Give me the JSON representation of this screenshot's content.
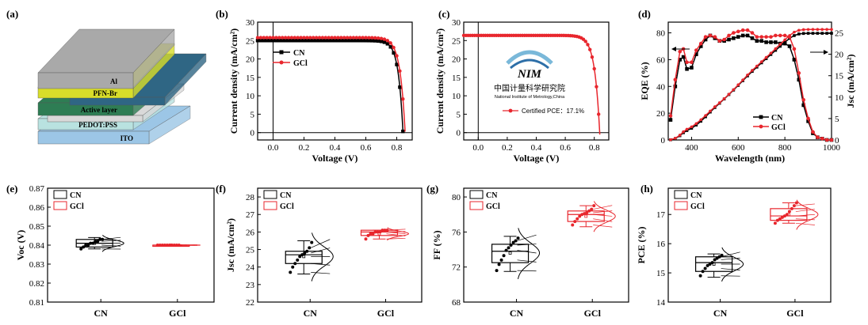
{
  "panel_labels": [
    "(a)",
    "(b)",
    "(c)",
    "(d)",
    "(e)",
    "(f)",
    "(g)",
    "(h)"
  ],
  "colors": {
    "CN": "#000000",
    "GCl": "#e8262d"
  },
  "device_stack": {
    "layers": [
      {
        "label": "Al",
        "color": "#a9a9a9"
      },
      {
        "label": "PFN-Br",
        "color": "#d8dd2a"
      },
      {
        "label": "",
        "color": "#2f6684"
      },
      {
        "label": "Active layer",
        "color": "#2e7d54"
      },
      {
        "label": "",
        "color": "#d9d9d9"
      },
      {
        "label": "PEDOT:PSS",
        "color": "#b9e2e0"
      },
      {
        "label": "ITO",
        "color": "#9cc6e6"
      }
    ]
  },
  "certification": {
    "logo_cn": "中国计量科学研究院",
    "logo_en": "National Institute of Metrology,China"
  },
  "chart_data": [
    {
      "panel": "(b)",
      "type": "line",
      "xlabel": "Voltage (V)",
      "ylabel": "Current density (mA/cm²)",
      "xlim": [
        -0.1,
        0.9
      ],
      "ylim": [
        -2,
        30
      ],
      "xticks": [
        "0.0",
        "0.2",
        "0.4",
        "0.6",
        "0.8"
      ],
      "yticks": [
        "0",
        "5",
        "10",
        "15",
        "20",
        "25",
        "30"
      ],
      "legend": "top-left",
      "series": [
        {
          "name": "CN",
          "color": "#000000",
          "jsc": 25.0,
          "voc": 0.841,
          "n": 2.8
        },
        {
          "name": "GCl",
          "color": "#e8262d",
          "jsc": 25.8,
          "voc": 0.855,
          "n": 2.6
        }
      ]
    },
    {
      "panel": "(c)",
      "type": "line",
      "xlabel": "Voltage (V)",
      "ylabel": "Current density (mA/cm²)",
      "xlim": [
        -0.1,
        0.9
      ],
      "ylim": [
        -2,
        30
      ],
      "xticks": [
        "0.0",
        "0.2",
        "0.4",
        "0.6",
        "0.8"
      ],
      "yticks": [
        "0",
        "5",
        "10",
        "15",
        "20",
        "25",
        "30"
      ],
      "legend": "center",
      "series": [
        {
          "name": "Certified PCE：17.1%",
          "color": "#e8262d",
          "jsc": 26.4,
          "voc": 0.838,
          "n": 2.4
        }
      ]
    },
    {
      "panel": "(d)",
      "type": "line",
      "xlabel": "Wavelength (nm)",
      "ylabel_left": "EQE (%)",
      "ylabel_right": "Jsc (mA/cm²)",
      "xlim": [
        300,
        1000
      ],
      "ylim_left": [
        0,
        88
      ],
      "ylim_right": [
        0,
        27.5
      ],
      "xticks": [
        "400",
        "600",
        "800",
        "1000"
      ],
      "yticks_left": [
        "0",
        "20",
        "40",
        "60",
        "80"
      ],
      "yticks_right": [
        "0",
        "5",
        "10",
        "15",
        "20",
        "25"
      ],
      "legend": "center-right",
      "x": [
        310,
        330,
        350,
        365,
        380,
        400,
        420,
        440,
        460,
        480,
        500,
        520,
        540,
        560,
        580,
        600,
        620,
        640,
        660,
        680,
        700,
        720,
        740,
        760,
        780,
        800,
        820,
        840,
        860,
        880,
        900,
        920,
        940,
        960,
        980,
        1000
      ],
      "series": [
        {
          "name": "CN",
          "color": "#000000",
          "eqe": [
            15,
            40,
            60,
            62,
            53,
            54,
            64,
            70,
            75,
            78,
            76,
            74,
            74,
            75,
            76,
            77,
            78,
            78,
            76,
            74,
            74,
            73,
            73,
            73,
            72,
            72,
            70,
            60,
            45,
            26,
            14,
            5,
            2,
            1,
            0,
            0
          ],
          "jsc_final": 24.9
        },
        {
          "name": "GCl",
          "color": "#e8262d",
          "eqe": [
            18,
            45,
            66,
            68,
            58,
            58,
            67,
            72,
            77,
            78,
            77,
            74,
            75,
            78,
            80,
            81,
            82,
            82,
            80,
            77,
            77,
            77,
            77,
            78,
            78,
            78,
            77,
            68,
            50,
            30,
            16,
            6,
            2,
            1,
            0,
            0
          ],
          "jsc_final": 25.8
        }
      ]
    },
    {
      "panel": "(e)",
      "type": "box",
      "ylabel": "Voc (V)",
      "ylim": [
        0.81,
        0.87
      ],
      "yticks": [
        "0.81",
        "0.82",
        "0.83",
        "0.84",
        "0.85",
        "0.86",
        "0.87"
      ],
      "categories": [
        "CN",
        "GCl"
      ],
      "legend": "top-left",
      "groups": [
        {
          "name": "CN",
          "q1": 0.839,
          "median": 0.841,
          "q3": 0.843,
          "whisker_low": 0.838,
          "whisker_high": 0.844,
          "mean": 0.841,
          "points": [
            0.838,
            0.839,
            0.84,
            0.84,
            0.841,
            0.841,
            0.842,
            0.842,
            0.843,
            0.843
          ]
        },
        {
          "name": "GCl",
          "q1": 0.84,
          "median": 0.84,
          "q3": 0.84,
          "whisker_low": 0.84,
          "whisker_high": 0.84,
          "mean": 0.84,
          "points": [
            0.84,
            0.84,
            0.84,
            0.84,
            0.84,
            0.84,
            0.84,
            0.84,
            0.84,
            0.84
          ]
        }
      ]
    },
    {
      "panel": "(f)",
      "type": "box",
      "ylabel": "Jsc (mA/cm²)",
      "ylim": [
        22,
        28.5
      ],
      "yticks": [
        "22",
        "23",
        "24",
        "25",
        "26",
        "27",
        "28"
      ],
      "categories": [
        "CN",
        "GCl"
      ],
      "legend": "top-left",
      "groups": [
        {
          "name": "CN",
          "q1": 24.2,
          "median": 24.7,
          "q3": 24.9,
          "whisker_low": 23.6,
          "whisker_high": 25.5,
          "mean": 24.6,
          "points": [
            23.7,
            24.0,
            24.2,
            24.4,
            24.6,
            24.7,
            24.8,
            24.9,
            25.1,
            25.4
          ]
        },
        {
          "name": "GCl",
          "q1": 25.8,
          "median": 26.0,
          "q3": 26.1,
          "whisker_low": 25.6,
          "whisker_high": 26.1,
          "mean": 25.9,
          "points": [
            25.6,
            25.8,
            25.9,
            25.9,
            26.0,
            26.0,
            26.0,
            26.1,
            26.1,
            26.1
          ]
        }
      ]
    },
    {
      "panel": "(g)",
      "type": "box",
      "ylabel": "FF (%)",
      "ylim": [
        68,
        81
      ],
      "yticks": [
        "68",
        "72",
        "76",
        "80"
      ],
      "categories": [
        "CN",
        "GCl"
      ],
      "legend": "top-left",
      "groups": [
        {
          "name": "CN",
          "q1": 72.5,
          "median": 73.8,
          "q3": 74.6,
          "whisker_low": 71.5,
          "whisker_high": 75.5,
          "mean": 73.6,
          "points": [
            71.6,
            72.3,
            72.8,
            73.3,
            73.9,
            74.2,
            74.5,
            74.8,
            75.0,
            75.3
          ]
        },
        {
          "name": "GCl",
          "q1": 77.2,
          "median": 78.0,
          "q3": 78.4,
          "whisker_low": 76.6,
          "whisker_high": 79.0,
          "mean": 77.8,
          "points": [
            76.8,
            77.2,
            77.5,
            77.8,
            78.0,
            78.1,
            78.2,
            78.4,
            78.6,
            79.0
          ]
        }
      ]
    },
    {
      "panel": "(h)",
      "type": "box",
      "ylabel": "PCE (%)",
      "ylim": [
        14,
        17.9
      ],
      "yticks": [
        "14",
        "15",
        "16",
        "17"
      ],
      "categories": [
        "CN",
        "GCl"
      ],
      "legend": "top-left",
      "groups": [
        {
          "name": "CN",
          "q1": 15.05,
          "median": 15.35,
          "q3": 15.55,
          "whisker_low": 14.85,
          "whisker_high": 15.65,
          "mean": 15.3,
          "points": [
            14.9,
            15.05,
            15.15,
            15.25,
            15.3,
            15.35,
            15.45,
            15.5,
            15.55,
            15.6
          ]
        },
        {
          "name": "GCl",
          "q1": 16.8,
          "median": 16.95,
          "q3": 17.2,
          "whisker_low": 16.7,
          "whisker_high": 17.4,
          "mean": 17.0,
          "points": [
            16.7,
            16.8,
            16.85,
            16.9,
            16.95,
            17.0,
            17.1,
            17.2,
            17.3,
            17.4
          ]
        }
      ]
    }
  ]
}
